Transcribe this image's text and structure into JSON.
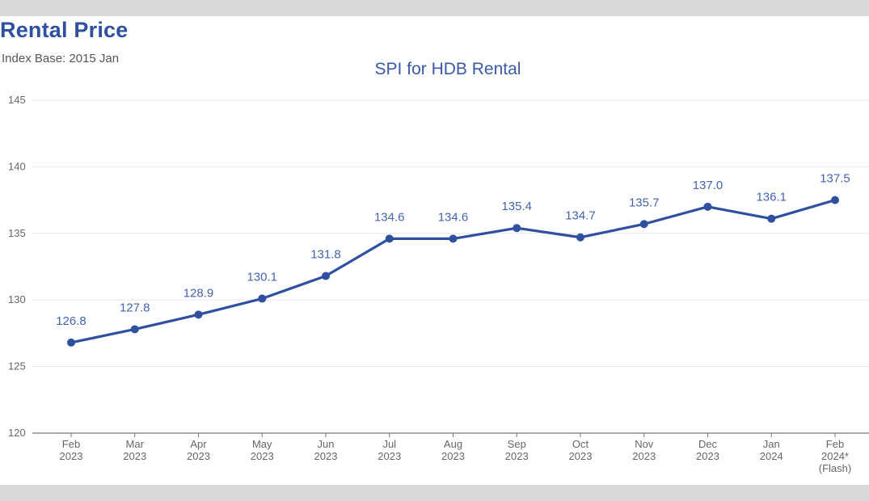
{
  "header": {
    "title": "Rental Price",
    "subtitle": "Index Base: 2015 Jan"
  },
  "colors": {
    "accent": "#3a5aa8",
    "line": "#2f4fa0",
    "grid": "#e6e6e6",
    "axis": "#777777"
  },
  "chart_data": {
    "type": "line",
    "title": "SPI for HDB Rental",
    "xlabel": "",
    "ylabel": "",
    "ylim": [
      120,
      145
    ],
    "yticks": [
      120,
      125,
      130,
      135,
      140,
      145
    ],
    "grid": true,
    "categories": [
      [
        "Feb",
        "2023"
      ],
      [
        "Mar",
        "2023"
      ],
      [
        "Apr",
        "2023"
      ],
      [
        "May",
        "2023"
      ],
      [
        "Jun",
        "2023"
      ],
      [
        "Jul",
        "2023"
      ],
      [
        "Aug",
        "2023"
      ],
      [
        "Sep",
        "2023"
      ],
      [
        "Oct",
        "2023"
      ],
      [
        "Nov",
        "2023"
      ],
      [
        "Dec",
        "2023"
      ],
      [
        "Jan",
        "2024"
      ],
      [
        "Feb",
        "2024*",
        "(Flash)"
      ]
    ],
    "series": [
      {
        "name": "SPI for HDB Rental",
        "values": [
          126.8,
          127.8,
          128.9,
          130.1,
          131.8,
          134.6,
          134.6,
          135.4,
          134.7,
          135.7,
          137.0,
          136.1,
          137.5
        ],
        "labels": [
          "126.8",
          "127.8",
          "128.9",
          "130.1",
          "131.8",
          "134.6",
          "134.6",
          "135.4",
          "134.7",
          "135.7",
          "137.0",
          "136.1",
          "137.5"
        ]
      }
    ]
  }
}
